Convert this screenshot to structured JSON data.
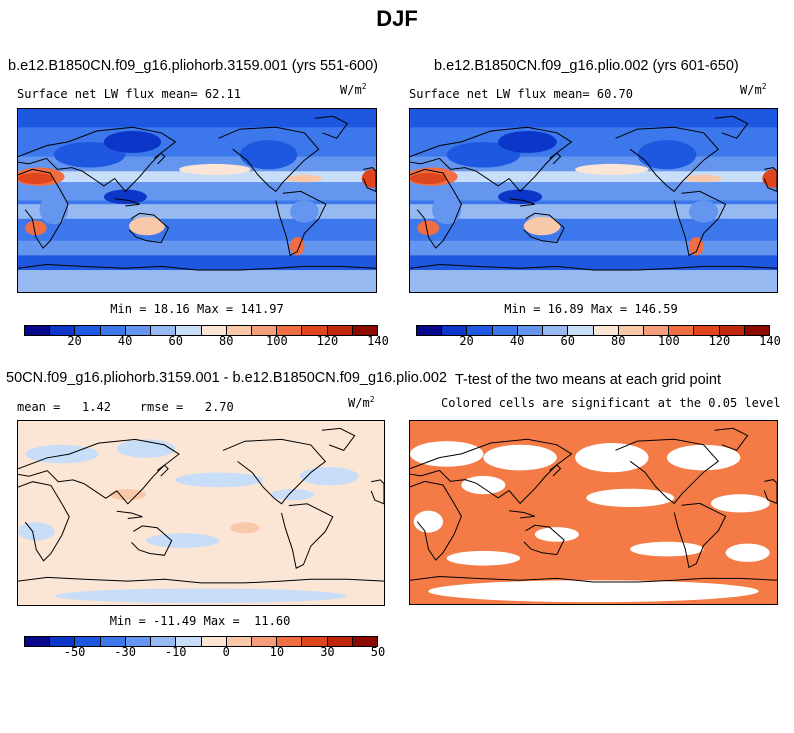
{
  "title": "DJF",
  "panels": {
    "p1": {
      "title": "b.e12.B1850CN.f09_g16.pliohorb.3159.001 (yrs 551-600)",
      "stat": "Surface net LW flux mean=  62.11",
      "units": "W/m",
      "units_exp": "2",
      "minmax": "Min =  18.16 Max = 141.97"
    },
    "p2": {
      "title": "b.e12.B1850CN.f09_g16.plio.002 (yrs 601-650)",
      "stat": "Surface net LW flux mean=  60.70",
      "units": "W/m",
      "units_exp": "2",
      "minmax": "Min =  16.89 Max = 146.59"
    },
    "p3": {
      "title": "50CN.f09_g16.pliohorb.3159.001 - b.e12.B1850CN.f09_g16.plio.002",
      "stat": "mean =   1.42    rmse =   2.70",
      "units": "W/m",
      "units_exp": "2",
      "minmax": "Min = -11.49 Max =  11.60"
    },
    "p4": {
      "title": "T-test of the two means at each grid point",
      "subtitle": "Colored cells are significant at the 0.05 level"
    }
  },
  "colorbars": {
    "abs": {
      "ticks": [
        "20",
        "40",
        "60",
        "80",
        "100",
        "120",
        "140"
      ]
    },
    "diff": {
      "ticks": [
        "-50",
        "-30",
        "-10",
        "0",
        "10",
        "30",
        "50"
      ]
    }
  },
  "colors": {
    "palette": [
      "#08088c",
      "#0b36c8",
      "#1e58e0",
      "#3c78ec",
      "#6496f0",
      "#96b9f2",
      "#c8ddf7",
      "#fbe6d6",
      "#f9c8a8",
      "#f59c78",
      "#ef6e44",
      "#e0461e",
      "#c0260c",
      "#8c0a00"
    ],
    "ttest": "#f47b46",
    "coast": "#000000"
  },
  "chart_data": [
    {
      "type": "heatmap",
      "title": "b.e12.B1850CN.f09_g16.pliohorb.3159.001 (yrs 551-600)",
      "variable": "Surface net LW flux",
      "units": "W/m^2",
      "mean": 62.11,
      "min": 18.16,
      "max": 141.97,
      "colorbar_ticks": [
        20,
        40,
        60,
        80,
        100,
        120,
        140
      ],
      "lon_range": [
        0,
        360
      ],
      "lat_range": [
        -90,
        90
      ]
    },
    {
      "type": "heatmap",
      "title": "b.e12.B1850CN.f09_g16.plio.002 (yrs 601-650)",
      "variable": "Surface net LW flux",
      "units": "W/m^2",
      "mean": 60.7,
      "min": 16.89,
      "max": 146.59,
      "colorbar_ticks": [
        20,
        40,
        60,
        80,
        100,
        120,
        140
      ],
      "lon_range": [
        0,
        360
      ],
      "lat_range": [
        -90,
        90
      ]
    },
    {
      "type": "heatmap",
      "title": "50CN.f09_g16.pliohorb.3159.001 - b.e12.B1850CN.f09_g16.plio.002",
      "units": "W/m^2",
      "mean": 1.42,
      "rmse": 2.7,
      "min": -11.49,
      "max": 11.6,
      "colorbar_ticks": [
        -50,
        -30,
        -10,
        0,
        10,
        30,
        50
      ],
      "lon_range": [
        0,
        360
      ],
      "lat_range": [
        -90,
        90
      ]
    },
    {
      "type": "heatmap",
      "title": "T-test of the two means at each grid point",
      "subtitle": "Colored cells are significant at the 0.05 level",
      "significance_level": 0.05,
      "lon_range": [
        0,
        360
      ],
      "lat_range": [
        -90,
        90
      ]
    }
  ]
}
